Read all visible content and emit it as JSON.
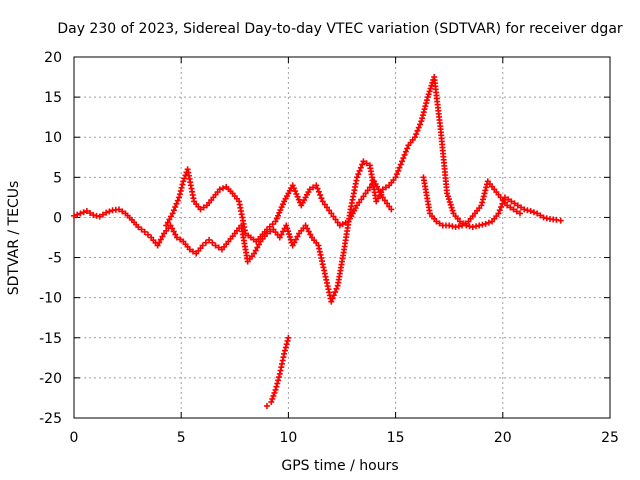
{
  "chart_data": {
    "type": "scatter",
    "title": "Day 230 of 2023, Sidereal Day-to-day VTEC variation (SDTVAR) for receiver dgar",
    "xlabel": "GPS time / hours",
    "ylabel": "SDTVAR / TECUs",
    "xlim": [
      0,
      25
    ],
    "ylim": [
      -25,
      20
    ],
    "xticks": [
      0,
      5,
      10,
      15,
      20,
      25
    ],
    "yticks": [
      -25,
      -20,
      -15,
      -10,
      -5,
      0,
      5,
      10,
      15,
      20
    ],
    "grid": true,
    "marker": "+",
    "colors": {
      "series": "#ff0000",
      "grid": "#a0a0a0",
      "axis": "#000000"
    },
    "series": [
      {
        "name": "SDTVAR",
        "x": [
          0.0,
          0.3,
          0.6,
          0.9,
          1.2,
          1.5,
          1.8,
          2.1,
          2.4,
          2.7,
          3.0,
          3.3,
          3.6,
          3.9,
          4.2,
          4.5,
          4.8,
          5.1,
          5.4,
          5.7,
          6.0,
          6.3,
          6.6,
          6.9,
          7.2,
          7.5,
          7.8,
          8.1,
          8.4,
          8.7,
          9.0,
          9.3,
          9.6,
          9.9,
          10.2,
          10.5,
          10.8,
          11.1,
          11.4,
          11.7,
          12.0,
          12.3,
          12.6,
          12.9,
          13.2,
          13.5,
          13.8,
          14.1,
          14.4,
          14.7,
          15.0,
          15.3,
          15.6,
          15.9,
          16.2,
          16.5,
          16.8,
          17.1,
          17.4,
          17.7,
          18.0,
          18.3,
          18.6,
          18.9,
          19.2,
          19.5,
          19.8,
          20.1,
          20.4,
          20.7,
          21.0,
          21.3,
          21.6,
          21.9,
          22.2,
          22.5,
          22.7
        ],
        "y": [
          0.2,
          0.5,
          0.8,
          0.3,
          0.1,
          0.6,
          0.9,
          1.0,
          0.5,
          -0.3,
          -1.2,
          -1.8,
          -2.5,
          -3.5,
          -2.0,
          -1.0,
          -2.5,
          -3.0,
          -4.0,
          -4.5,
          -3.5,
          -2.8,
          -3.5,
          -4.0,
          -3.0,
          -2.0,
          -1.0,
          -5.5,
          -4.5,
          -3.0,
          -2.0,
          -1.5,
          -2.5,
          -1.0,
          -3.5,
          -2.0,
          -1.0,
          -2.5,
          -3.5,
          -7.0,
          -10.5,
          -8.5,
          -4.0,
          1.0,
          5.0,
          7.0,
          6.5,
          2.0,
          3.5,
          4.0,
          5.0,
          7.0,
          9.0,
          10.0,
          12.0,
          15.0,
          17.5,
          11.0,
          3.0,
          0.5,
          -0.5,
          -1.0,
          -1.2,
          -1.0,
          -0.8,
          -0.5,
          0.5,
          2.5,
          2.0,
          1.5,
          1.0,
          0.8,
          0.5,
          0.0,
          -0.2,
          -0.3,
          -0.4
        ]
      },
      {
        "name": "SDTVAR",
        "x": [
          4.3,
          4.6,
          4.9,
          5.1,
          5.3,
          5.6,
          5.9,
          6.2,
          6.5,
          6.8,
          7.1,
          7.4,
          7.7,
          8.0,
          8.5,
          9.0,
          9.4,
          9.8,
          10.2,
          10.6,
          11.0,
          11.3,
          11.6,
          12.0,
          12.4,
          12.8,
          13.2,
          13.6,
          14.0,
          14.4,
          14.8
        ],
        "y": [
          -1.0,
          0.5,
          2.5,
          4.5,
          6.0,
          2.0,
          1.0,
          1.5,
          2.5,
          3.5,
          3.8,
          3.0,
          2.0,
          -2.0,
          -3.0,
          -1.5,
          -0.5,
          2.0,
          4.0,
          1.5,
          3.5,
          4.0,
          2.0,
          0.5,
          -1.0,
          -0.5,
          1.5,
          3.0,
          4.5,
          2.5,
          1.0
        ]
      },
      {
        "name": "SDTVAR",
        "x": [
          9.0,
          9.2,
          9.4,
          9.6,
          9.8,
          10.0
        ],
        "y": [
          -23.5,
          -23.0,
          -21.5,
          -19.5,
          -17.0,
          -15.0
        ]
      },
      {
        "name": "SDTVAR",
        "x": [
          16.3,
          16.6,
          16.9,
          17.2,
          17.5,
          17.8,
          18.1,
          18.4,
          18.7,
          19.0,
          19.3,
          19.6,
          19.9,
          20.2,
          20.5,
          20.8
        ],
        "y": [
          5.0,
          0.5,
          -0.5,
          -1.0,
          -1.0,
          -1.2,
          -1.0,
          -0.5,
          0.5,
          1.5,
          4.5,
          3.5,
          2.5,
          1.5,
          1.0,
          0.5
        ]
      }
    ]
  }
}
